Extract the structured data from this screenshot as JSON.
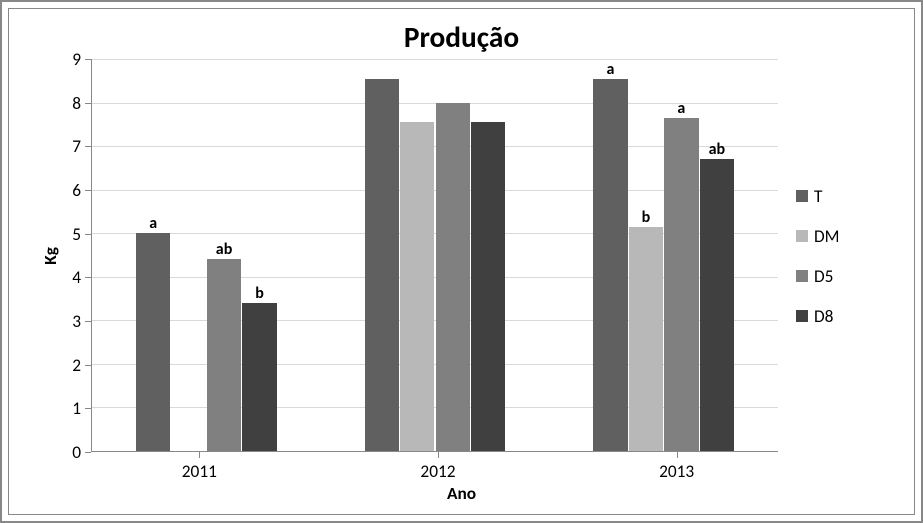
{
  "chart": {
    "type": "bar",
    "title": "Produção",
    "title_fontsize": 22,
    "xlabel": "Ano",
    "ylabel": "Kg",
    "axis_label_fontsize": 13,
    "tick_fontsize": 13,
    "bar_label_fontsize": 12,
    "ylim": [
      0,
      9
    ],
    "ytick_step": 1,
    "grid_color": "#d9d9d9",
    "axis_color": "#888888",
    "background_color": "#ffffff",
    "categories": [
      "2011",
      "2012",
      "2013"
    ],
    "series": [
      {
        "name": "T",
        "color": "#606060"
      },
      {
        "name": "DM",
        "color": "#b8b8b8"
      },
      {
        "name": "D5",
        "color": "#808080"
      },
      {
        "name": "D8",
        "color": "#404040"
      }
    ],
    "data": {
      "2011": {
        "T": 5.0,
        "DM": null,
        "D5": 4.4,
        "D8": 3.4
      },
      "2012": {
        "T": 8.55,
        "DM": 7.55,
        "D5": 8.0,
        "D8": 7.55
      },
      "2013": {
        "T": 8.55,
        "DM": 5.15,
        "D5": 7.65,
        "D8": 6.7
      }
    },
    "value_labels": {
      "2011": {
        "T": "a",
        "D5": "ab",
        "D8": "b"
      },
      "2013": {
        "T": "a",
        "DM": "b",
        "D5": "a",
        "D8": "ab"
      }
    },
    "layout": {
      "group_gap_ratio": 0.38,
      "bar_gap_ratio": 0.03
    }
  }
}
